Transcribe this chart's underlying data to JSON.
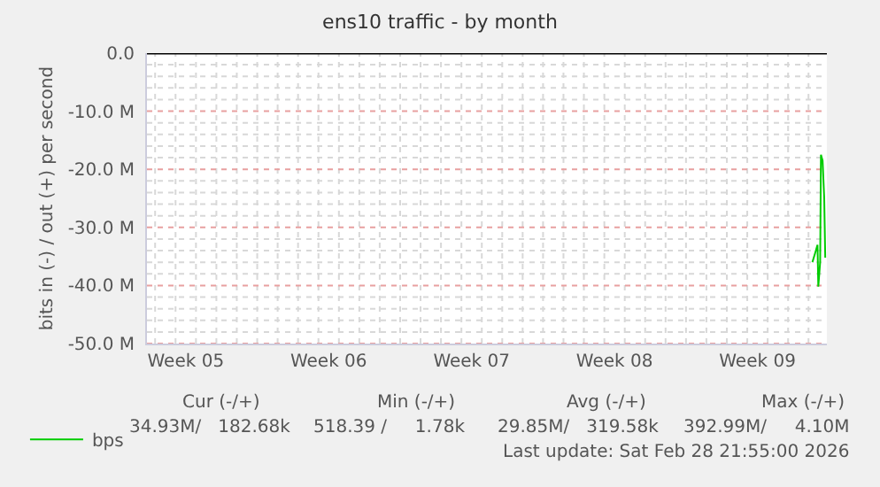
{
  "chart_data": {
    "type": "line",
    "title": "ens10 traffic - by month",
    "ylabel": "bits in (-) / out (+) per second",
    "series": [
      {
        "name": "bps",
        "color": "#00cc00",
        "x": [
          "2026-02-28T04:34",
          "2026-02-28T07:41",
          "2026-02-28T10:34",
          "2026-02-28T11:31",
          "2026-02-28T13:41",
          "2026-02-28T14:38",
          "2026-02-28T16:34",
          "2026-02-28T18:29",
          "2026-02-28T19:41"
        ],
        "values": [
          -36,
          -34.5,
          -33,
          -40.2,
          -36,
          -17.5,
          -18.5,
          -25,
          -35.2
        ]
      }
    ],
    "xlim": [
      "2026-01-26T14:24",
      "2026-02-28T21:36"
    ],
    "xticks": [
      {
        "value": "2026-01-27",
        "label": null
      },
      {
        "value": "2026-01-28",
        "label": null
      },
      {
        "value": "2026-01-28T12:00",
        "label": "Week 05"
      },
      {
        "value": "2026-01-29",
        "label": null
      },
      {
        "value": "2026-01-30",
        "label": null
      },
      {
        "value": "2026-01-31",
        "label": null
      },
      {
        "value": "2026-02-01",
        "label": null
      },
      {
        "value": "2026-02-02",
        "label": null
      },
      {
        "value": "2026-02-03",
        "label": null
      },
      {
        "value": "2026-02-04",
        "label": null
      },
      {
        "value": "2026-02-04T12:00",
        "label": "Week 06"
      },
      {
        "value": "2026-02-05",
        "label": null
      },
      {
        "value": "2026-02-06",
        "label": null
      },
      {
        "value": "2026-02-07",
        "label": null
      },
      {
        "value": "2026-02-08",
        "label": null
      },
      {
        "value": "2026-02-09",
        "label": null
      },
      {
        "value": "2026-02-10",
        "label": null
      },
      {
        "value": "2026-02-11",
        "label": null
      },
      {
        "value": "2026-02-11T12:00",
        "label": "Week 07"
      },
      {
        "value": "2026-02-12",
        "label": null
      },
      {
        "value": "2026-02-13",
        "label": null
      },
      {
        "value": "2026-02-14",
        "label": null
      },
      {
        "value": "2026-02-15",
        "label": null
      },
      {
        "value": "2026-02-16",
        "label": null
      },
      {
        "value": "2026-02-17",
        "label": null
      },
      {
        "value": "2026-02-18",
        "label": null
      },
      {
        "value": "2026-02-18T12:00",
        "label": "Week 08"
      },
      {
        "value": "2026-02-19",
        "label": null
      },
      {
        "value": "2026-02-20",
        "label": null
      },
      {
        "value": "2026-02-21",
        "label": null
      },
      {
        "value": "2026-02-22",
        "label": null
      },
      {
        "value": "2026-02-23",
        "label": null
      },
      {
        "value": "2026-02-24",
        "label": null
      },
      {
        "value": "2026-02-25",
        "label": null
      },
      {
        "value": "2026-02-25T12:00",
        "label": "Week 09"
      },
      {
        "value": "2026-02-26",
        "label": null
      },
      {
        "value": "2026-02-27",
        "label": null
      },
      {
        "value": "2026-02-28",
        "label": null
      }
    ],
    "ylim": [
      -50,
      0
    ],
    "yticks": [
      {
        "value": 0,
        "label": "0.0"
      },
      {
        "value": -2,
        "label": null
      },
      {
        "value": -4,
        "label": null
      },
      {
        "value": -6,
        "label": null
      },
      {
        "value": -8,
        "label": null
      },
      {
        "value": -10,
        "label": "-10.0 M"
      },
      {
        "value": -12,
        "label": null
      },
      {
        "value": -14,
        "label": null
      },
      {
        "value": -16,
        "label": null
      },
      {
        "value": -18,
        "label": null
      },
      {
        "value": -20,
        "label": "-20.0 M"
      },
      {
        "value": -22,
        "label": null
      },
      {
        "value": -24,
        "label": null
      },
      {
        "value": -26,
        "label": null
      },
      {
        "value": -28,
        "label": null
      },
      {
        "value": -30,
        "label": "-30.0 M"
      },
      {
        "value": -32,
        "label": null
      },
      {
        "value": -34,
        "label": null
      },
      {
        "value": -36,
        "label": null
      },
      {
        "value": -38,
        "label": null
      },
      {
        "value": -40,
        "label": "-40.0 M"
      },
      {
        "value": -42,
        "label": null
      },
      {
        "value": -44,
        "label": null
      },
      {
        "value": -46,
        "label": null
      },
      {
        "value": -48,
        "label": null
      },
      {
        "value": -50,
        "label": "-50.0 M"
      }
    ],
    "ref_lines": [
      {
        "axis": "y",
        "value": 0,
        "color": "#000000"
      }
    ],
    "grid": true,
    "legend": "bottom left",
    "marker": "none",
    "line_style": "solid",
    "annotations": [
      "Cur (-/+)",
      "Min (-/+)",
      "Avg (-/+)",
      "Max (-/+)",
      "34.93M/   182.68k",
      "518.39 /     1.78k",
      "29.85M/   319.58k",
      "392.99M/     4.10M",
      "Last update: Sat Feb 28 21:55:00 2026"
    ]
  }
}
